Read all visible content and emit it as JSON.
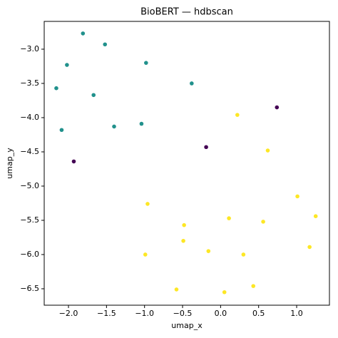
{
  "chart_data": {
    "type": "scatter",
    "title": "BioBERT — hdbscan",
    "x_label": "umap_x",
    "y_label": "umap_y",
    "xlim": [
      -2.319,
      1.431
    ],
    "ylim": [
      -6.74,
      -2.594
    ],
    "xticks": [
      {
        "value": -2,
        "label": "−2.0"
      },
      {
        "value": -1.5,
        "label": "−1.5"
      },
      {
        "value": -1,
        "label": "−1.0"
      },
      {
        "value": -0.5,
        "label": "−0.5"
      },
      {
        "value": 0,
        "label": "0.0"
      },
      {
        "value": 0.5,
        "label": "0.5"
      },
      {
        "value": 1,
        "label": "1.0"
      }
    ],
    "yticks": [
      {
        "value": -3,
        "label": "−3.0"
      },
      {
        "value": -3.5,
        "label": "−3.5"
      },
      {
        "value": -4,
        "label": "−4.0"
      },
      {
        "value": -4.5,
        "label": "−4.5"
      },
      {
        "value": -5,
        "label": "−5.0"
      },
      {
        "value": -5.5,
        "label": "−5.5"
      },
      {
        "value": -6,
        "label": "−6.0"
      },
      {
        "value": -6.5,
        "label": "−6.5"
      }
    ],
    "grid": false,
    "series": [
      {
        "color": "#21918c",
        "x": [
          -1.81,
          -1.52,
          -2.02,
          -0.98,
          -2.16,
          -1.67,
          -0.38,
          -1.4,
          -1.04,
          -2.09
        ],
        "values": [
          -2.77,
          -2.93,
          -3.23,
          -3.2,
          -3.57,
          -3.67,
          -3.5,
          -4.13,
          -4.09,
          -4.18
        ]
      },
      {
        "color": "#440154",
        "x": [
          0.74,
          -0.19,
          -1.93
        ],
        "values": [
          -3.85,
          -4.43,
          -4.64
        ]
      },
      {
        "color": "#fde725",
        "x": [
          0.22,
          0.62,
          1.01,
          -0.96,
          1.25,
          0.11,
          -0.48,
          0.56,
          -0.49,
          1.17,
          -0.16,
          -0.99,
          0.3,
          -0.58,
          0.43,
          0.05
        ],
        "values": [
          -3.96,
          -4.48,
          -5.15,
          -5.26,
          -5.44,
          -5.47,
          -5.57,
          -5.52,
          -5.8,
          -5.89,
          -5.95,
          -6.0,
          -6.0,
          -6.51,
          -6.46,
          -6.55
        ]
      }
    ]
  }
}
